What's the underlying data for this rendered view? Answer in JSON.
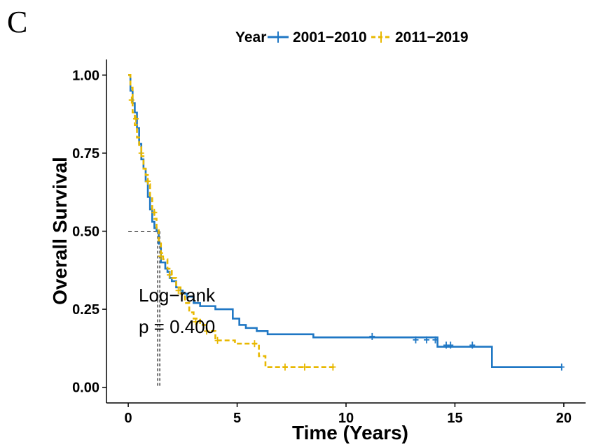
{
  "panel_label": "C",
  "chart_data": {
    "type": "line",
    "title": "",
    "xlabel": "Time (Years)",
    "ylabel": "Overall Survival",
    "xlim": [
      -1,
      21
    ],
    "ylim": [
      -0.05,
      1.05
    ],
    "x_ticks": [
      0,
      5,
      10,
      15,
      20
    ],
    "x_tick_labels": [
      "0",
      "5",
      "10",
      "15",
      "20"
    ],
    "y_ticks": [
      0,
      0.25,
      0.5,
      0.75,
      1.0
    ],
    "y_tick_labels": [
      "0.00",
      "0.25",
      "0.50",
      "0.75",
      "1.00"
    ],
    "grid": false,
    "legend": {
      "title": "Year",
      "position": "top",
      "entries": [
        "2001−2010",
        "2011−2019"
      ]
    },
    "annotations": [
      "Log−rank",
      "p = 0.400"
    ],
    "median_survival": {
      "y": 0.5,
      "x_by_series": [
        1.4,
        1.4
      ]
    },
    "series": [
      {
        "name": "2001−2010",
        "color": "#1f77c4",
        "style": "solid",
        "x": [
          0,
          0.1,
          0.2,
          0.3,
          0.4,
          0.5,
          0.6,
          0.7,
          0.8,
          0.9,
          1.0,
          1.1,
          1.2,
          1.3,
          1.4,
          1.5,
          1.7,
          1.8,
          1.9,
          2.0,
          2.2,
          2.4,
          2.5,
          2.7,
          3.0,
          3.3,
          3.7,
          4.0,
          4.8,
          5.1,
          5.4,
          5.9,
          6.4,
          8.5,
          14.2,
          16.7,
          19.9
        ],
        "y": [
          1.0,
          0.95,
          0.91,
          0.88,
          0.83,
          0.78,
          0.73,
          0.7,
          0.66,
          0.61,
          0.57,
          0.53,
          0.51,
          0.5,
          0.46,
          0.4,
          0.38,
          0.37,
          0.35,
          0.34,
          0.32,
          0.31,
          0.3,
          0.29,
          0.27,
          0.26,
          0.26,
          0.25,
          0.22,
          0.2,
          0.19,
          0.18,
          0.17,
          0.16,
          0.13,
          0.065,
          0.065
        ],
        "censored_x": [
          11.2,
          13.2,
          13.7,
          14.1,
          14.6,
          14.8,
          15.8,
          19.9
        ],
        "censored_y": [
          0.163,
          0.152,
          0.152,
          0.152,
          0.135,
          0.135,
          0.135,
          0.065
        ]
      },
      {
        "name": "2011−2019",
        "color": "#e8b800",
        "style": "dashed",
        "x": [
          0,
          0.1,
          0.2,
          0.3,
          0.4,
          0.5,
          0.6,
          0.7,
          0.8,
          0.9,
          1.0,
          1.1,
          1.2,
          1.3,
          1.4,
          1.5,
          1.6,
          1.8,
          2.0,
          2.2,
          2.4,
          2.6,
          2.8,
          3.0,
          3.3,
          3.6,
          4.0,
          4.4,
          4.9,
          5.5,
          6.0,
          6.3,
          9.5
        ],
        "y": [
          1.0,
          0.96,
          0.88,
          0.84,
          0.8,
          0.77,
          0.74,
          0.7,
          0.68,
          0.65,
          0.61,
          0.57,
          0.54,
          0.51,
          0.47,
          0.43,
          0.41,
          0.38,
          0.35,
          0.32,
          0.3,
          0.27,
          0.24,
          0.22,
          0.2,
          0.18,
          0.15,
          0.15,
          0.14,
          0.14,
          0.1,
          0.065,
          0.065
        ],
        "censored_x": [
          0.15,
          0.35,
          0.6,
          0.9,
          1.2,
          1.5,
          1.9,
          2.3,
          3.1,
          3.6,
          4.1,
          5.8,
          7.2,
          8.1,
          9.4
        ],
        "censored_y": [
          0.92,
          0.86,
          0.75,
          0.66,
          0.56,
          0.42,
          0.36,
          0.31,
          0.21,
          0.18,
          0.15,
          0.14,
          0.065,
          0.065,
          0.065
        ]
      }
    ]
  }
}
